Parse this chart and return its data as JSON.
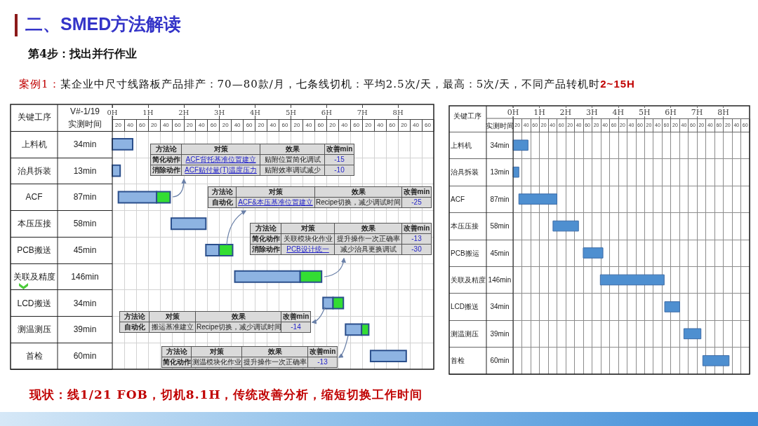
{
  "chart_data": [
    {
      "type": "bar",
      "orientation": "horizontal",
      "title": "二、SMED方法解读",
      "subtitle": "第4步：找出并行作业",
      "ylabel": "关键工序",
      "categories": [
        "上料机",
        "治具拆装",
        "ACF",
        "本压压接",
        "PCB搬送",
        "关联及精度",
        "LCD搬送",
        "测温测压",
        "首检"
      ],
      "series": [
        {
          "color": "#8db3e2",
          "base": [
            0,
            0,
            0.17,
            1.65,
            2.62,
            3.43,
            5.9,
            6.53,
            7.23
          ],
          "values": [
            0.57,
            0.22,
            1.07,
            0.97,
            0.37,
            1.83,
            0.28,
            0.45,
            1.0
          ]
        },
        {
          "color": "#33dd33",
          "base": [
            null,
            null,
            1.24,
            null,
            2.99,
            5.26,
            6.18,
            6.98,
            null
          ],
          "values": [
            null,
            null,
            0.38,
            null,
            0.38,
            0.6,
            0.29,
            0.2,
            null
          ]
        }
      ],
      "xlim": [
        0,
        9
      ],
      "xticks": [
        {
          "value": 0,
          "label": "0H"
        },
        {
          "value": 0.333,
          "label": null
        },
        {
          "value": 0.667,
          "label": null
        },
        {
          "value": 1,
          "label": "1H"
        },
        {
          "value": 1.333,
          "label": null
        },
        {
          "value": 1.667,
          "label": null
        },
        {
          "value": 2,
          "label": "2H"
        },
        {
          "value": 2.333,
          "label": null
        },
        {
          "value": 2.667,
          "label": null
        },
        {
          "value": 3,
          "label": "3H"
        },
        {
          "value": 3.333,
          "label": null
        },
        {
          "value": 3.667,
          "label": null
        },
        {
          "value": 4,
          "label": "4H"
        },
        {
          "value": 4.333,
          "label": null
        },
        {
          "value": 4.667,
          "label": null
        },
        {
          "value": 5,
          "label": "5H"
        },
        {
          "value": 5.333,
          "label": null
        },
        {
          "value": 5.667,
          "label": null
        },
        {
          "value": 6,
          "label": "6H"
        },
        {
          "value": 6.333,
          "label": null
        },
        {
          "value": 6.667,
          "label": null
        },
        {
          "value": 7,
          "label": "7H"
        },
        {
          "value": 7.333,
          "label": null
        },
        {
          "value": 7.667,
          "label": null
        },
        {
          "value": 8,
          "label": "8H"
        },
        {
          "value": 8.333,
          "label": null
        },
        {
          "value": 8.667,
          "label": null
        },
        {
          "value": 9,
          "label": null
        }
      ],
      "grid": true,
      "annotations": [
        "案例1：",
        "某企业中尺寸线路板产品排产：70—80款/月，七条线切机：平均2.5次/天，最高：5次/天，不同产品转机时",
        "2~15H",
        "现状：线1/21 FOB，切机8.1H，传统改善分析，缩短切换工作时间",
        "V#-1/19",
        "实测时间",
        "34min",
        "13min",
        "87min",
        "58min",
        "45min",
        "146min",
        "34min",
        "39min",
        "60min",
        "20",
        "40",
        "60",
        "20",
        "40",
        "60",
        "20",
        "40",
        "60",
        "20",
        "40",
        "60",
        "20",
        "40",
        "60",
        "20",
        "40",
        "60",
        "20",
        "40",
        "60",
        "20",
        "40",
        "60",
        "20",
        "40",
        "60",
        "方法论",
        "对策",
        "效果",
        "改善min",
        "简化动作",
        "ACF背托基准位置建立",
        "贴附位置简化调试",
        "-15",
        "消除动作",
        "ACF贴付量(T)温度压力",
        "贴附效率调试减少",
        "-10",
        "方法论",
        "对策",
        "效果",
        "改善min",
        "自动化",
        "ACF&本压基准位置建立",
        "Recipe切换，减少调试时间",
        "-25",
        "方法论",
        "对策",
        "效果",
        "改善min",
        "简化动作",
        "关联模块化作业",
        "提升操作一次正确率",
        "-13",
        "消除动作",
        "PCB设计统一",
        "减少治具更换调试",
        "-30",
        "方法论",
        "对策",
        "效果",
        "改善min",
        "自动化",
        "搬运基准建立",
        "Recipe切换，减少调试时间",
        "-14",
        "方法论",
        "对策",
        "效果",
        "改善min",
        "简化动作",
        "测温模块化作业",
        "提升操作一次正确率",
        "-13"
      ]
    },
    {
      "type": "bar",
      "orientation": "horizontal",
      "ylabel": "关键工序",
      "categories": [
        "上料机",
        "治具拆装",
        "ACF",
        "本压压接",
        "PCB搬运",
        "关联及精度",
        "LCD搬送",
        "测温测压",
        "首检"
      ],
      "base": [
        0,
        0,
        0.22,
        1.52,
        2.67,
        3.32,
        5.77,
        6.5,
        7.22
      ],
      "values": [
        0.57,
        0.22,
        1.45,
        0.97,
        0.75,
        2.43,
        0.57,
        0.65,
        1.0
      ],
      "color": "#4e8fd0",
      "xlim": [
        0,
        9
      ],
      "xticks": [
        {
          "value": 0,
          "label": "0H"
        },
        {
          "value": 0.333,
          "label": null
        },
        {
          "value": 0.667,
          "label": null
        },
        {
          "value": 1,
          "label": "1H"
        },
        {
          "value": 1.333,
          "label": null
        },
        {
          "value": 1.667,
          "label": null
        },
        {
          "value": 2,
          "label": "2H"
        },
        {
          "value": 2.333,
          "label": null
        },
        {
          "value": 2.667,
          "label": null
        },
        {
          "value": 3,
          "label": "3H"
        },
        {
          "value": 3.333,
          "label": null
        },
        {
          "value": 3.667,
          "label": null
        },
        {
          "value": 4,
          "label": "4H"
        },
        {
          "value": 4.333,
          "label": null
        },
        {
          "value": 4.667,
          "label": null
        },
        {
          "value": 5,
          "label": "5H"
        },
        {
          "value": 5.333,
          "label": null
        },
        {
          "value": 5.667,
          "label": null
        },
        {
          "value": 6,
          "label": "6H"
        },
        {
          "value": 6.333,
          "label": null
        },
        {
          "value": 6.667,
          "label": null
        },
        {
          "value": 7,
          "label": "7H"
        },
        {
          "value": 7.333,
          "label": null
        },
        {
          "value": 7.667,
          "label": null
        },
        {
          "value": 8,
          "label": "8H"
        },
        {
          "value": 8.333,
          "label": null
        },
        {
          "value": 8.667,
          "label": null
        },
        {
          "value": 9,
          "label": null
        }
      ],
      "grid": true,
      "annotations": [
        "实测时间",
        "34min",
        "13min",
        "87min",
        "58min",
        "45min",
        "146min",
        "34min",
        "39min",
        "60min",
        "20",
        "40",
        "60",
        "20",
        "40",
        "60",
        "20",
        "40",
        "60",
        "20",
        "40",
        "60",
        "20",
        "40",
        "60",
        "20",
        "40",
        "60",
        "20",
        "40",
        "60",
        "20",
        "40",
        "60",
        "20",
        "40",
        "60"
      ]
    }
  ]
}
